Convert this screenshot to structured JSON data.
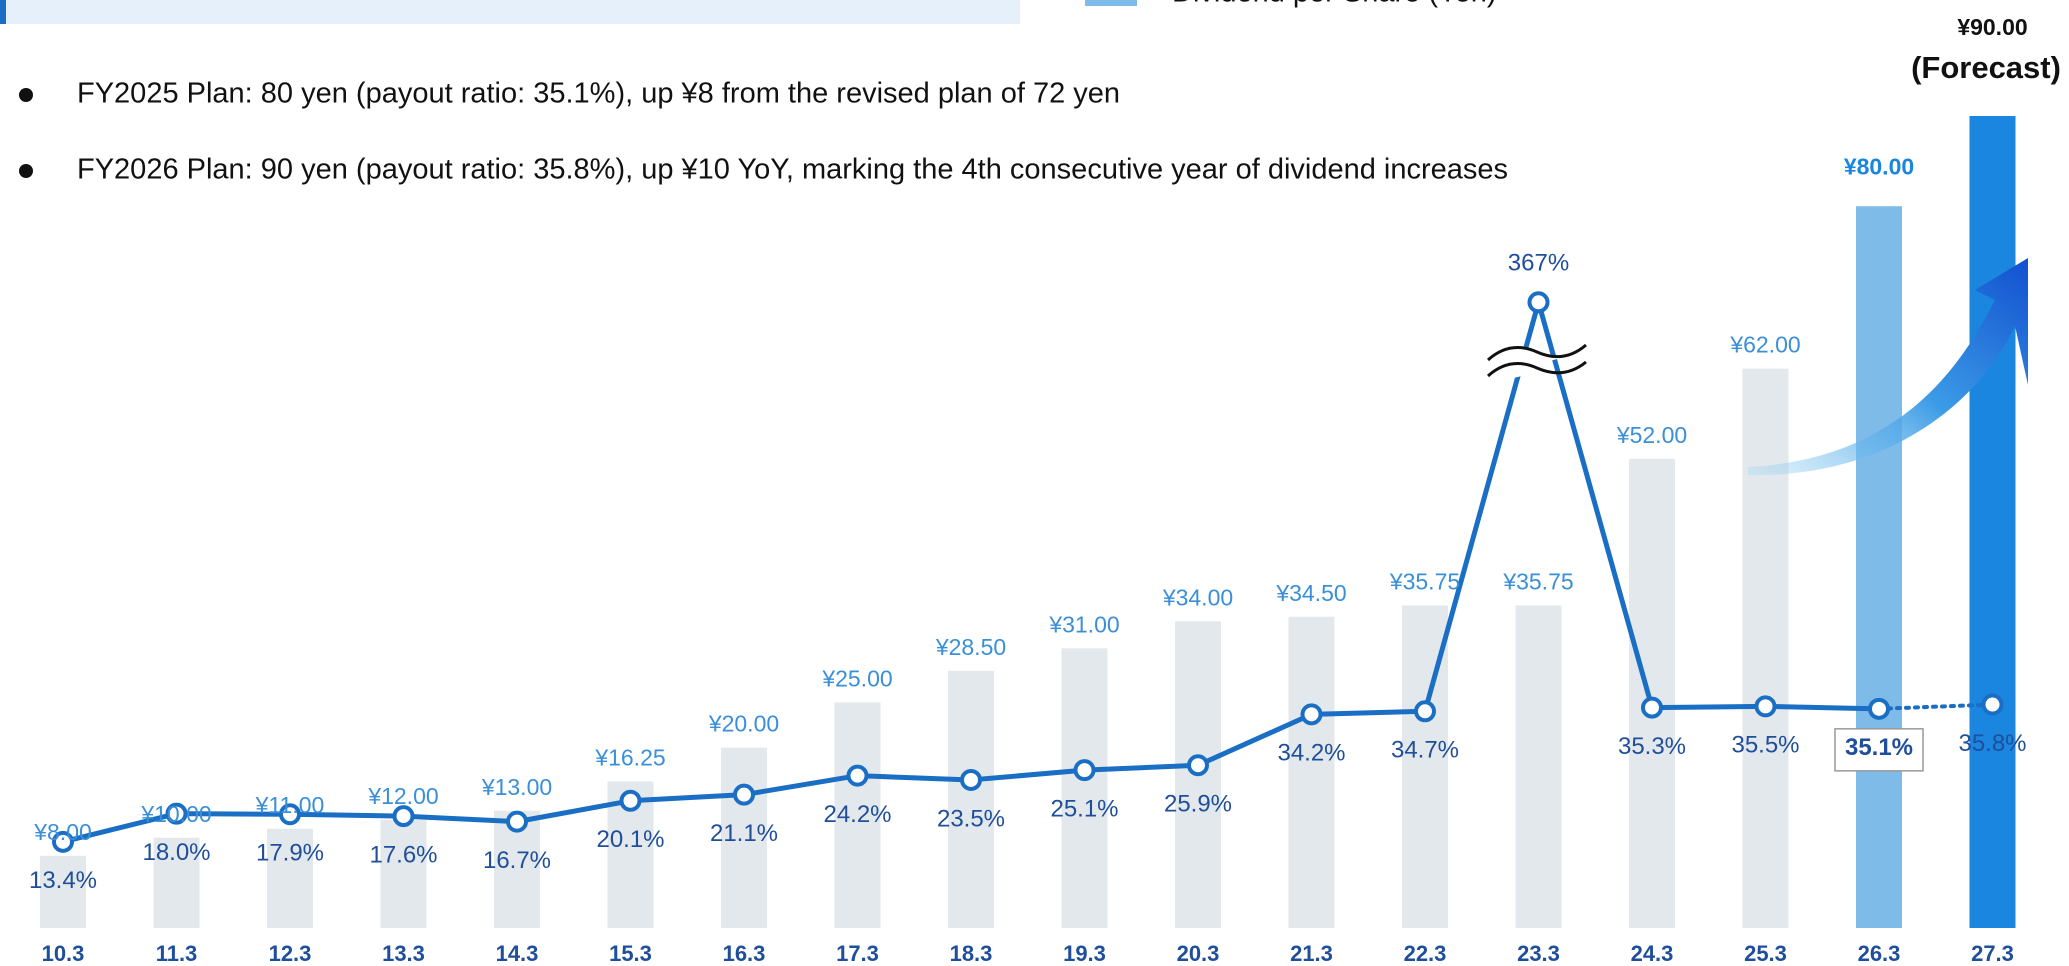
{
  "chart_data": {
    "type": "bar_line",
    "notes": [
      "FY2025 Plan: 80 yen (payout ratio: 35.1%), up ¥8 from the revised plan of 72 yen",
      "FY2026 Plan: 90 yen (payout ratio: 35.8%), up ¥10 YoY, marking the 4th consecutive year of dividend increases"
    ],
    "annotation": "(Forecast)",
    "categories": [
      "10.3",
      "11.3",
      "12.3",
      "13.3",
      "14.3",
      "15.3",
      "16.3",
      "17.3",
      "18.3",
      "19.3",
      "20.3",
      "21.3",
      "22.3",
      "23.3",
      "24.3",
      "25.3",
      "26.3",
      "27.3"
    ],
    "series": [
      {
        "name": "Dividend per Share (Yen)",
        "color": "#7fbbe8",
        "colors": [
          "#e3e8ec",
          "#e3e8ec",
          "#e3e8ec",
          "#e3e8ec",
          "#e3e8ec",
          "#e3e8ec",
          "#e3e8ec",
          "#e3e8ec",
          "#e3e8ec",
          "#e3e8ec",
          "#e3e8ec",
          "#e3e8ec",
          "#e3e8ec",
          "#e3e8ec",
          "#e3e8ec",
          "#e3e8ec",
          "#7fbbe8",
          "#1a86e0"
        ],
        "values": [
          8,
          10,
          11,
          12,
          13,
          16.25,
          20,
          25,
          28.5,
          31,
          34,
          34.5,
          35.75,
          35.75,
          52,
          62,
          80,
          90
        ],
        "value_labels": [
          "¥8.00",
          "¥10.00",
          "¥11.00",
          "¥12.00",
          "¥13.00",
          "¥16.25",
          "¥20.00",
          "¥25.00",
          "¥28.50",
          "¥31.00",
          "¥34.00",
          "¥34.50",
          "¥35.75",
          "¥35.75",
          "¥52.00",
          "¥62.00",
          "¥80.00",
          "¥90.00"
        ]
      },
      {
        "color": "#1a6fc4",
        "axis": "y2",
        "values": [
          13.4,
          18.0,
          17.9,
          17.6,
          16.7,
          20.1,
          21.1,
          24.2,
          23.5,
          25.1,
          25.9,
          34.2,
          34.7,
          367,
          35.3,
          35.5,
          35.1,
          35.8
        ],
        "value_labels": [
          "13.4%",
          "18.0%",
          "17.9%",
          "17.6%",
          "16.7%",
          "20.1%",
          "21.1%",
          "24.2%",
          "23.5%",
          "25.1%",
          "25.9%",
          "34.2%",
          "34.7%",
          "367%",
          "35.3%",
          "35.5%",
          "35.1%",
          "35.8%"
        ]
      }
    ]
  }
}
